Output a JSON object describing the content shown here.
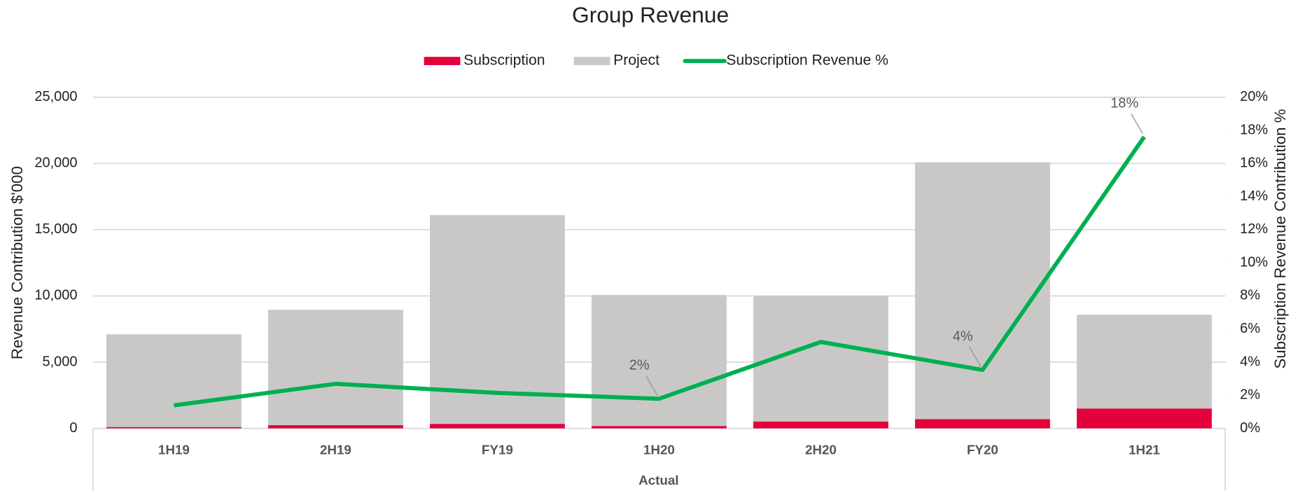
{
  "chart_data": {
    "type": "combo",
    "title": "Group Revenue",
    "y_label": "Revenue Contribution $'000",
    "y2_label": "Subscription Revenue Contribution %",
    "group_label": "Actual",
    "categories": [
      "1H19",
      "2H19",
      "FY19",
      "1H20",
      "2H20",
      "FY20",
      "1H21"
    ],
    "series": [
      {
        "name": "Subscription",
        "type": "bar",
        "stacked": true,
        "axis": "y",
        "color": "#e4003b",
        "values": [
          100,
          240,
          340,
          180,
          520,
          700,
          1500
        ]
      },
      {
        "name": "Project",
        "type": "bar",
        "stacked": true,
        "axis": "y",
        "color": "#c9c8c7",
        "values": [
          7000,
          8710,
          15760,
          9890,
          9490,
          19390,
          7080
        ]
      },
      {
        "name": "Subscription Revenue %",
        "type": "line",
        "axis": "y2",
        "color": "#00b050",
        "values": [
          1.39,
          2.69,
          2.14,
          1.79,
          5.22,
          3.53,
          17.61
        ],
        "value_labels": [
          null,
          null,
          null,
          "2%",
          null,
          "4%",
          "18%"
        ]
      }
    ],
    "ylim": [
      0,
      25000
    ],
    "yticks": [
      0,
      {
        "value": 5000,
        "label": "5,000"
      },
      {
        "value": 10000,
        "label": "10,000"
      },
      {
        "value": 15000,
        "label": "15,000"
      },
      {
        "value": 20000,
        "label": "20,000"
      },
      {
        "value": 25000,
        "label": "25,000"
      }
    ],
    "y2lim": [
      0,
      20
    ],
    "y2ticks": [
      {
        "value": 0,
        "label": "0%"
      },
      {
        "value": 2,
        "label": "2%"
      },
      {
        "value": 4,
        "label": "4%"
      },
      {
        "value": 6,
        "label": "6%"
      },
      {
        "value": 8,
        "label": "8%"
      },
      {
        "value": 10,
        "label": "10%"
      },
      {
        "value": 12,
        "label": "12%"
      },
      {
        "value": 14,
        "label": "14%"
      },
      {
        "value": 16,
        "label": "16%"
      },
      {
        "value": 18,
        "label": "18%"
      },
      {
        "value": 20,
        "label": "20%"
      }
    ],
    "grid": true,
    "legend": "top"
  }
}
